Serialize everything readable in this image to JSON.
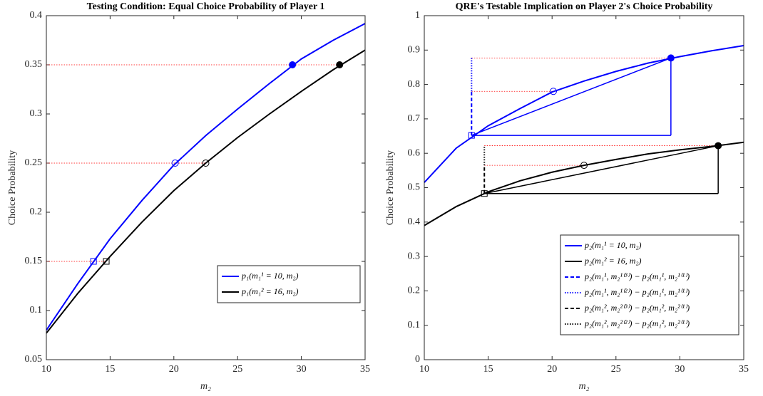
{
  "chart_data": [
    {
      "type": "line",
      "title": "Testing Condition: Equal Choice Probability of Player 1",
      "xlabel": "m₂",
      "ylabel": "Choice Probability",
      "xlim": [
        10,
        35
      ],
      "ylim": [
        0.05,
        0.4
      ],
      "xticks": [
        10,
        15,
        20,
        25,
        30,
        35
      ],
      "yticks": [
        0.05,
        0.1,
        0.15,
        0.2,
        0.25,
        0.3,
        0.35,
        0.4
      ],
      "legend": "lower right",
      "series": [
        {
          "name": "p₁(m₁¹ = 10, m₂)",
          "color": "#0000ff",
          "style": "solid",
          "x": [
            10,
            12.5,
            15,
            17.5,
            20,
            22.5,
            25,
            27.5,
            30,
            32.5,
            35
          ],
          "values": [
            0.08,
            0.128,
            0.173,
            0.212,
            0.248,
            0.278,
            0.305,
            0.331,
            0.356,
            0.375,
            0.392
          ]
        },
        {
          "name": "p₁(m₁² = 16, m₂)",
          "color": "#000000",
          "style": "solid",
          "x": [
            10,
            12.5,
            15,
            17.5,
            20,
            22.5,
            25,
            27.5,
            30,
            32.5,
            35
          ],
          "values": [
            0.077,
            0.118,
            0.155,
            0.19,
            0.222,
            0.25,
            0.276,
            0.3,
            0.323,
            0.345,
            0.365
          ]
        }
      ],
      "lines": [
        {
          "color": "#ff0000",
          "style": "dotted",
          "x": [
            10,
            14.7
          ],
          "values": [
            0.15,
            0.15
          ]
        },
        {
          "color": "#ff0000",
          "style": "dotted",
          "x": [
            10,
            22.5
          ],
          "values": [
            0.25,
            0.25
          ]
        },
        {
          "color": "#ff0000",
          "style": "dotted",
          "x": [
            10,
            33
          ],
          "values": [
            0.35,
            0.35
          ]
        }
      ],
      "markers": [
        {
          "color": "#0000ff",
          "shape": "square",
          "x": 13.7,
          "y": 0.15
        },
        {
          "color": "#000000",
          "shape": "square",
          "x": 14.7,
          "y": 0.15
        },
        {
          "color": "#0000ff",
          "shape": "open-circle",
          "x": 20.1,
          "y": 0.25
        },
        {
          "color": "#000000",
          "shape": "open-circle",
          "x": 22.5,
          "y": 0.25
        },
        {
          "color": "#0000ff",
          "shape": "filled-circle",
          "x": 29.3,
          "y": 0.35
        },
        {
          "color": "#000000",
          "shape": "filled-circle",
          "x": 33,
          "y": 0.35
        }
      ]
    },
    {
      "type": "line",
      "title": "QRE's Testable Implication on Player 2's Choice Probability",
      "xlabel": "m₂",
      "ylabel": "Choice Probability",
      "xlim": [
        10,
        35
      ],
      "ylim": [
        0,
        1
      ],
      "xticks": [
        10,
        15,
        20,
        25,
        30,
        35
      ],
      "yticks": [
        0,
        0.1,
        0.2,
        0.3,
        0.4,
        0.5,
        0.6,
        0.7,
        0.8,
        0.9,
        1
      ],
      "legend": "lower right",
      "series": [
        {
          "name": "p₂(m₁¹ = 10, m₂)",
          "color": "#0000ff",
          "style": "solid",
          "x": [
            10,
            12.5,
            15,
            17.5,
            20,
            22.5,
            25,
            27.5,
            30,
            32.5,
            35
          ],
          "values": [
            0.515,
            0.615,
            0.68,
            0.73,
            0.778,
            0.81,
            0.838,
            0.862,
            0.881,
            0.898,
            0.913
          ]
        },
        {
          "name": "p₂(m₁² = 16, m₂)",
          "color": "#000000",
          "style": "solid",
          "x": [
            10,
            12.5,
            15,
            17.5,
            20,
            22.5,
            25,
            27.5,
            30,
            32.5,
            35
          ],
          "values": [
            0.39,
            0.445,
            0.488,
            0.52,
            0.545,
            0.565,
            0.582,
            0.598,
            0.61,
            0.62,
            0.632
          ]
        },
        {
          "name": "p₂(m₁¹, m₂¹⁽³⁾) − p₂(m₁¹, m₂¹⁽¹⁾)",
          "color": "#0000ff",
          "style": "dashed",
          "x": [
            13.7,
            13.7
          ],
          "values": [
            0.652,
            0.78
          ]
        },
        {
          "name": "p₂(m₁¹, m₂¹⁽²⁾) − p₂(m₁¹, m₂¹⁽¹⁾)",
          "color": "#0000ff",
          "style": "dotted",
          "x": [
            13.7,
            13.7
          ],
          "values": [
            0.78,
            0.877
          ]
        },
        {
          "name": "p₂(m₁², m₂²⁽³⁾) − p₂(m₁², m₂²⁽¹⁾)",
          "color": "#000000",
          "style": "dashed",
          "x": [
            14.7,
            14.7
          ],
          "values": [
            0.483,
            0.565
          ]
        },
        {
          "name": "p₂(m₁², m₂²⁽²⁾) − p₂(m₁², m₂²⁽¹⁾)",
          "color": "#000000",
          "style": "dotted",
          "x": [
            14.7,
            14.7
          ],
          "values": [
            0.565,
            0.622
          ]
        }
      ],
      "lines": [
        {
          "color": "#ff0000",
          "style": "dotted",
          "x": [
            13.7,
            29.3
          ],
          "values": [
            0.877,
            0.877
          ]
        },
        {
          "color": "#ff0000",
          "style": "dotted",
          "x": [
            13.7,
            20.1
          ],
          "values": [
            0.78,
            0.78
          ]
        },
        {
          "color": "#ff0000",
          "style": "dotted",
          "x": [
            14.7,
            33
          ],
          "values": [
            0.622,
            0.622
          ]
        },
        {
          "color": "#ff0000",
          "style": "dotted",
          "x": [
            14.7,
            22.5
          ],
          "values": [
            0.565,
            0.565
          ]
        },
        {
          "color": "#0000ff",
          "style": "solid",
          "x": [
            13.7,
            29.3
          ],
          "values": [
            0.652,
            0.877
          ]
        },
        {
          "color": "#0000ff",
          "style": "solid",
          "x": [
            13.7,
            29.3
          ],
          "values": [
            0.652,
            0.652
          ]
        },
        {
          "color": "#0000ff",
          "style": "solid",
          "x": [
            29.3,
            29.3
          ],
          "values": [
            0.652,
            0.877
          ]
        },
        {
          "color": "#000000",
          "style": "solid",
          "x": [
            14.7,
            33
          ],
          "values": [
            0.483,
            0.622
          ]
        },
        {
          "color": "#000000",
          "style": "solid",
          "x": [
            14.7,
            33
          ],
          "values": [
            0.483,
            0.483
          ]
        },
        {
          "color": "#000000",
          "style": "solid",
          "x": [
            33,
            33
          ],
          "values": [
            0.483,
            0.622
          ]
        }
      ],
      "markers": [
        {
          "color": "#0000ff",
          "shape": "square",
          "x": 13.7,
          "y": 0.652
        },
        {
          "color": "#0000ff",
          "shape": "open-circle",
          "x": 20.1,
          "y": 0.78
        },
        {
          "color": "#0000ff",
          "shape": "filled-circle",
          "x": 29.3,
          "y": 0.877
        },
        {
          "color": "#000000",
          "shape": "square",
          "x": 14.7,
          "y": 0.483
        },
        {
          "color": "#000000",
          "shape": "open-circle",
          "x": 22.5,
          "y": 0.565
        },
        {
          "color": "#000000",
          "shape": "filled-circle",
          "x": 33,
          "y": 0.622
        }
      ]
    }
  ]
}
